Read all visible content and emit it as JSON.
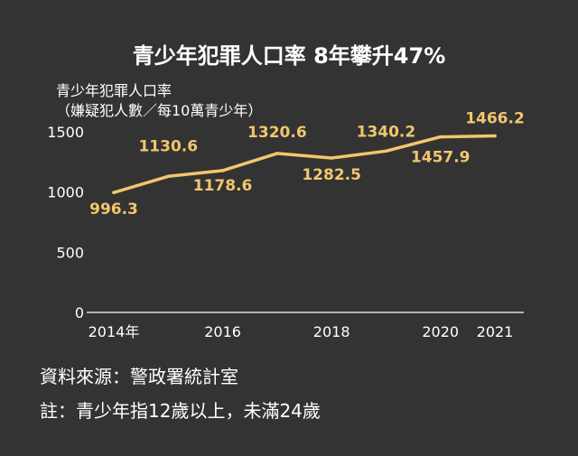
{
  "colors": {
    "background": "#333333",
    "line": "#f2c66d",
    "text": "#ffffff",
    "axis": "#ffffff"
  },
  "chart_data": {
    "type": "line",
    "title": "青少年犯罪人口率 8年攀升47%",
    "ylabel": [
      "青少年犯罪人口率",
      "（嫌疑犯人數／每10萬青少年）"
    ],
    "x": [
      2014,
      2015,
      2016,
      2017,
      2018,
      2019,
      2020,
      2021
    ],
    "x_tick_labels": [
      {
        "x": 2014,
        "label": "2014年"
      },
      {
        "x": 2016,
        "label": "2016"
      },
      {
        "x": 2018,
        "label": "2018"
      },
      {
        "x": 2020,
        "label": "2020"
      },
      {
        "x": 2021,
        "label": "2021"
      }
    ],
    "y_ticks": [
      0,
      500,
      1000,
      1500
    ],
    "ylim": [
      0,
      1500
    ],
    "grid": false,
    "series": [
      {
        "values": [
          996.3,
          1130.6,
          1178.6,
          1320.6,
          1282.5,
          1340.2,
          1457.9,
          1466.2
        ],
        "labels": [
          "996.3",
          "1130.6",
          "1178.6",
          "1320.6",
          "1282.5",
          "1340.2",
          "1457.9",
          "1466.2"
        ]
      }
    ]
  },
  "footer": {
    "source": "資料來源：警政署統計室",
    "note": "註：青少年指12歲以上，未滿24歲"
  }
}
